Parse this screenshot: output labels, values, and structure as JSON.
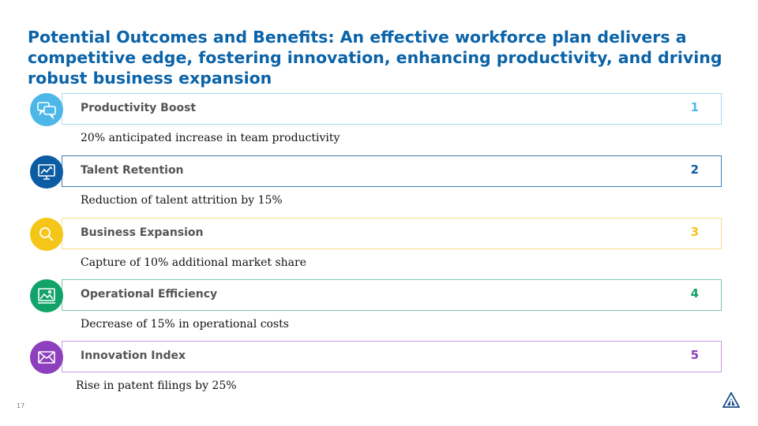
{
  "title": "Potential Outcomes and Benefits: An effective workforce plan delivers a competitive edge, fostering innovation, enhancing productivity, and driving robust business expansion",
  "items": [
    {
      "label": "Productivity Boost",
      "number": "1",
      "description": "20% anticipated increase in team productivity",
      "color": "#4db8e8",
      "icon": "chat-bubbles-icon"
    },
    {
      "label": "Talent Retention",
      "number": "2",
      "description": "Reduction of talent attrition by 15%",
      "color": "#0b5ca3",
      "icon": "chart-monitor-icon"
    },
    {
      "label": "Business Expansion",
      "number": "3",
      "description": "Capture of 10% additional market share",
      "color": "#f5c518",
      "icon": "magnifier-icon"
    },
    {
      "label": "Operational Efficiency",
      "number": "4",
      "description": "Decrease of 15% in operational costs",
      "color": "#12a36a",
      "icon": "landscape-screen-icon"
    },
    {
      "label": "Innovation Index",
      "number": "5",
      "description": "Rise in patent filings by 25%",
      "color": "#8e3fbd",
      "icon": "envelope-icon"
    }
  ],
  "slide_number": "17",
  "logo": "company-logo"
}
